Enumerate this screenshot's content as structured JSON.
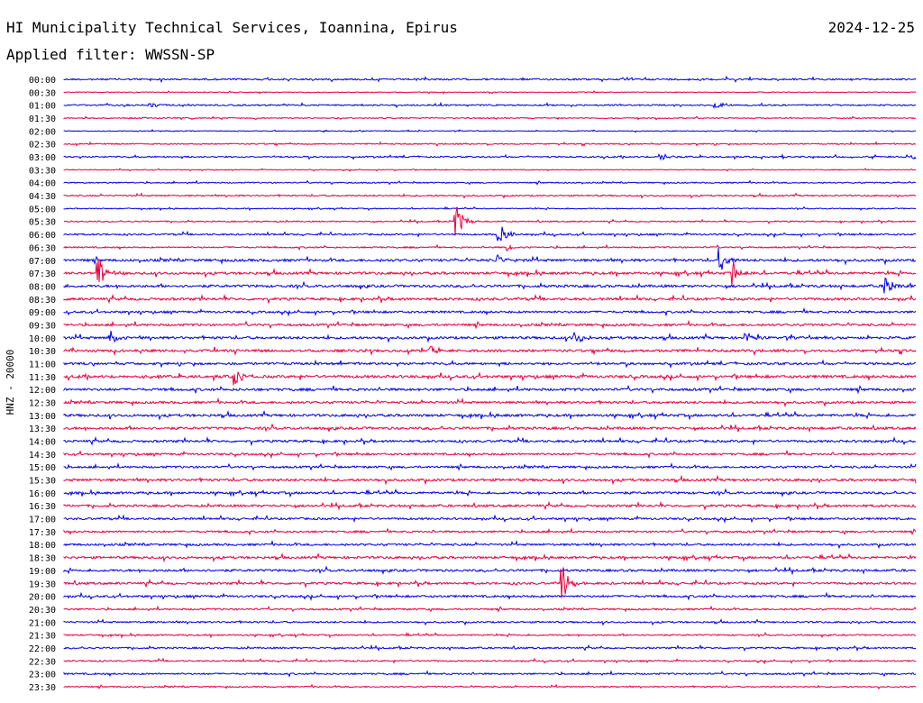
{
  "header": {
    "station": "HI Municipality Technical Services, Ioannina, Epirus",
    "date": "2024-12-25",
    "filter": "Applied filter: WWSSN-SP",
    "channel_label": "HNZ - 20000"
  },
  "colors": {
    "blue": "#0000e6",
    "red": "#e6003c",
    "text": "#000000",
    "background": "#ffffff"
  },
  "chart_data": {
    "type": "helicorder",
    "row_labels": [
      "00:00",
      "00:30",
      "01:00",
      "01:30",
      "02:00",
      "02:30",
      "03:00",
      "03:30",
      "04:00",
      "04:30",
      "05:00",
      "05:30",
      "06:00",
      "06:30",
      "07:00",
      "07:30",
      "08:00",
      "08:30",
      "09:00",
      "09:30",
      "10:00",
      "10:30",
      "11:00",
      "11:30",
      "12:00",
      "12:30",
      "13:00",
      "13:30",
      "14:00",
      "14:30",
      "15:00",
      "15:30",
      "16:00",
      "16:30",
      "17:00",
      "17:30",
      "18:00",
      "18:30",
      "19:00",
      "19:30",
      "20:00",
      "20:30",
      "21:00",
      "21:30",
      "22:00",
      "22:30",
      "23:00",
      "23:30"
    ],
    "trace_colors": [
      "blue",
      "red"
    ],
    "row_noise_level": [
      0.4,
      0.2,
      0.35,
      0.25,
      0.2,
      0.3,
      0.35,
      0.2,
      0.3,
      0.35,
      0.25,
      0.3,
      0.4,
      0.35,
      0.6,
      0.6,
      0.6,
      0.6,
      0.5,
      0.55,
      0.6,
      0.6,
      0.55,
      0.65,
      0.6,
      0.55,
      0.6,
      0.6,
      0.55,
      0.5,
      0.5,
      0.6,
      0.55,
      0.55,
      0.5,
      0.45,
      0.5,
      0.55,
      0.55,
      0.55,
      0.5,
      0.4,
      0.4,
      0.35,
      0.4,
      0.35,
      0.4,
      0.3
    ],
    "events": [
      {
        "row": 11,
        "x": 0.46,
        "amplitude": 2.4
      },
      {
        "row": 12,
        "x": 0.51,
        "amplitude": 1.6
      },
      {
        "row": 13,
        "x": 0.52,
        "amplitude": 0.6
      },
      {
        "row": 14,
        "x": 0.77,
        "amplitude": 1.6
      },
      {
        "row": 14,
        "x": 0.51,
        "amplitude": 0.6
      },
      {
        "row": 15,
        "x": 0.04,
        "amplitude": 2.2
      },
      {
        "row": 15,
        "x": 0.785,
        "amplitude": 1.8
      },
      {
        "row": 16,
        "x": 0.965,
        "amplitude": 2.0
      },
      {
        "row": 20,
        "x": 0.055,
        "amplitude": 1.0
      },
      {
        "row": 20,
        "x": 0.6,
        "amplitude": 1.0
      },
      {
        "row": 20,
        "x": 0.8,
        "amplitude": 0.7
      },
      {
        "row": 21,
        "x": 0.43,
        "amplitude": 0.8
      },
      {
        "row": 23,
        "x": 0.2,
        "amplitude": 1.3
      },
      {
        "row": 39,
        "x": 0.585,
        "amplitude": 2.4
      },
      {
        "row": 6,
        "x": 0.7,
        "amplitude": 0.5
      },
      {
        "row": 6,
        "x": 0.995,
        "amplitude": 0.6
      },
      {
        "row": 2,
        "x": 0.1,
        "amplitude": 0.5
      },
      {
        "row": 2,
        "x": 0.765,
        "amplitude": 0.5
      }
    ]
  }
}
